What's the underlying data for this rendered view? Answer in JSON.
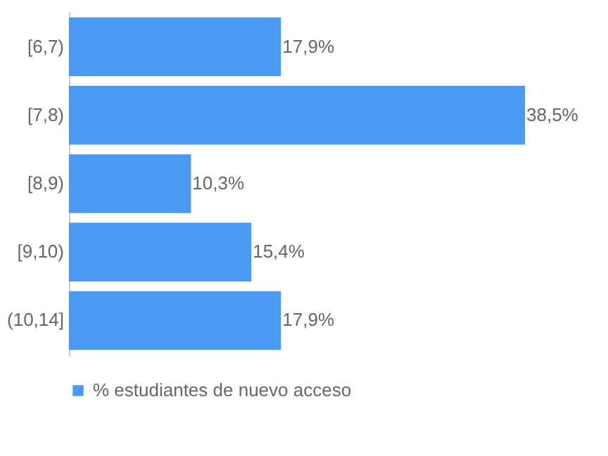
{
  "chart_data": {
    "type": "bar",
    "orientation": "horizontal",
    "categories": [
      "[6,7)",
      "[7,8)",
      "[8,9)",
      "[9,10)",
      "(10,14]"
    ],
    "series": [
      {
        "name": "% estudiantes de nuevo acceso",
        "color": "#4a9af5",
        "values": [
          17.9,
          38.5,
          10.3,
          15.4,
          17.9
        ],
        "value_labels": [
          "17,9%",
          "38,5%",
          "10,3%",
          "15,4%",
          "17,9%"
        ]
      }
    ],
    "tick_labels": "y",
    "legend": "bottom"
  }
}
